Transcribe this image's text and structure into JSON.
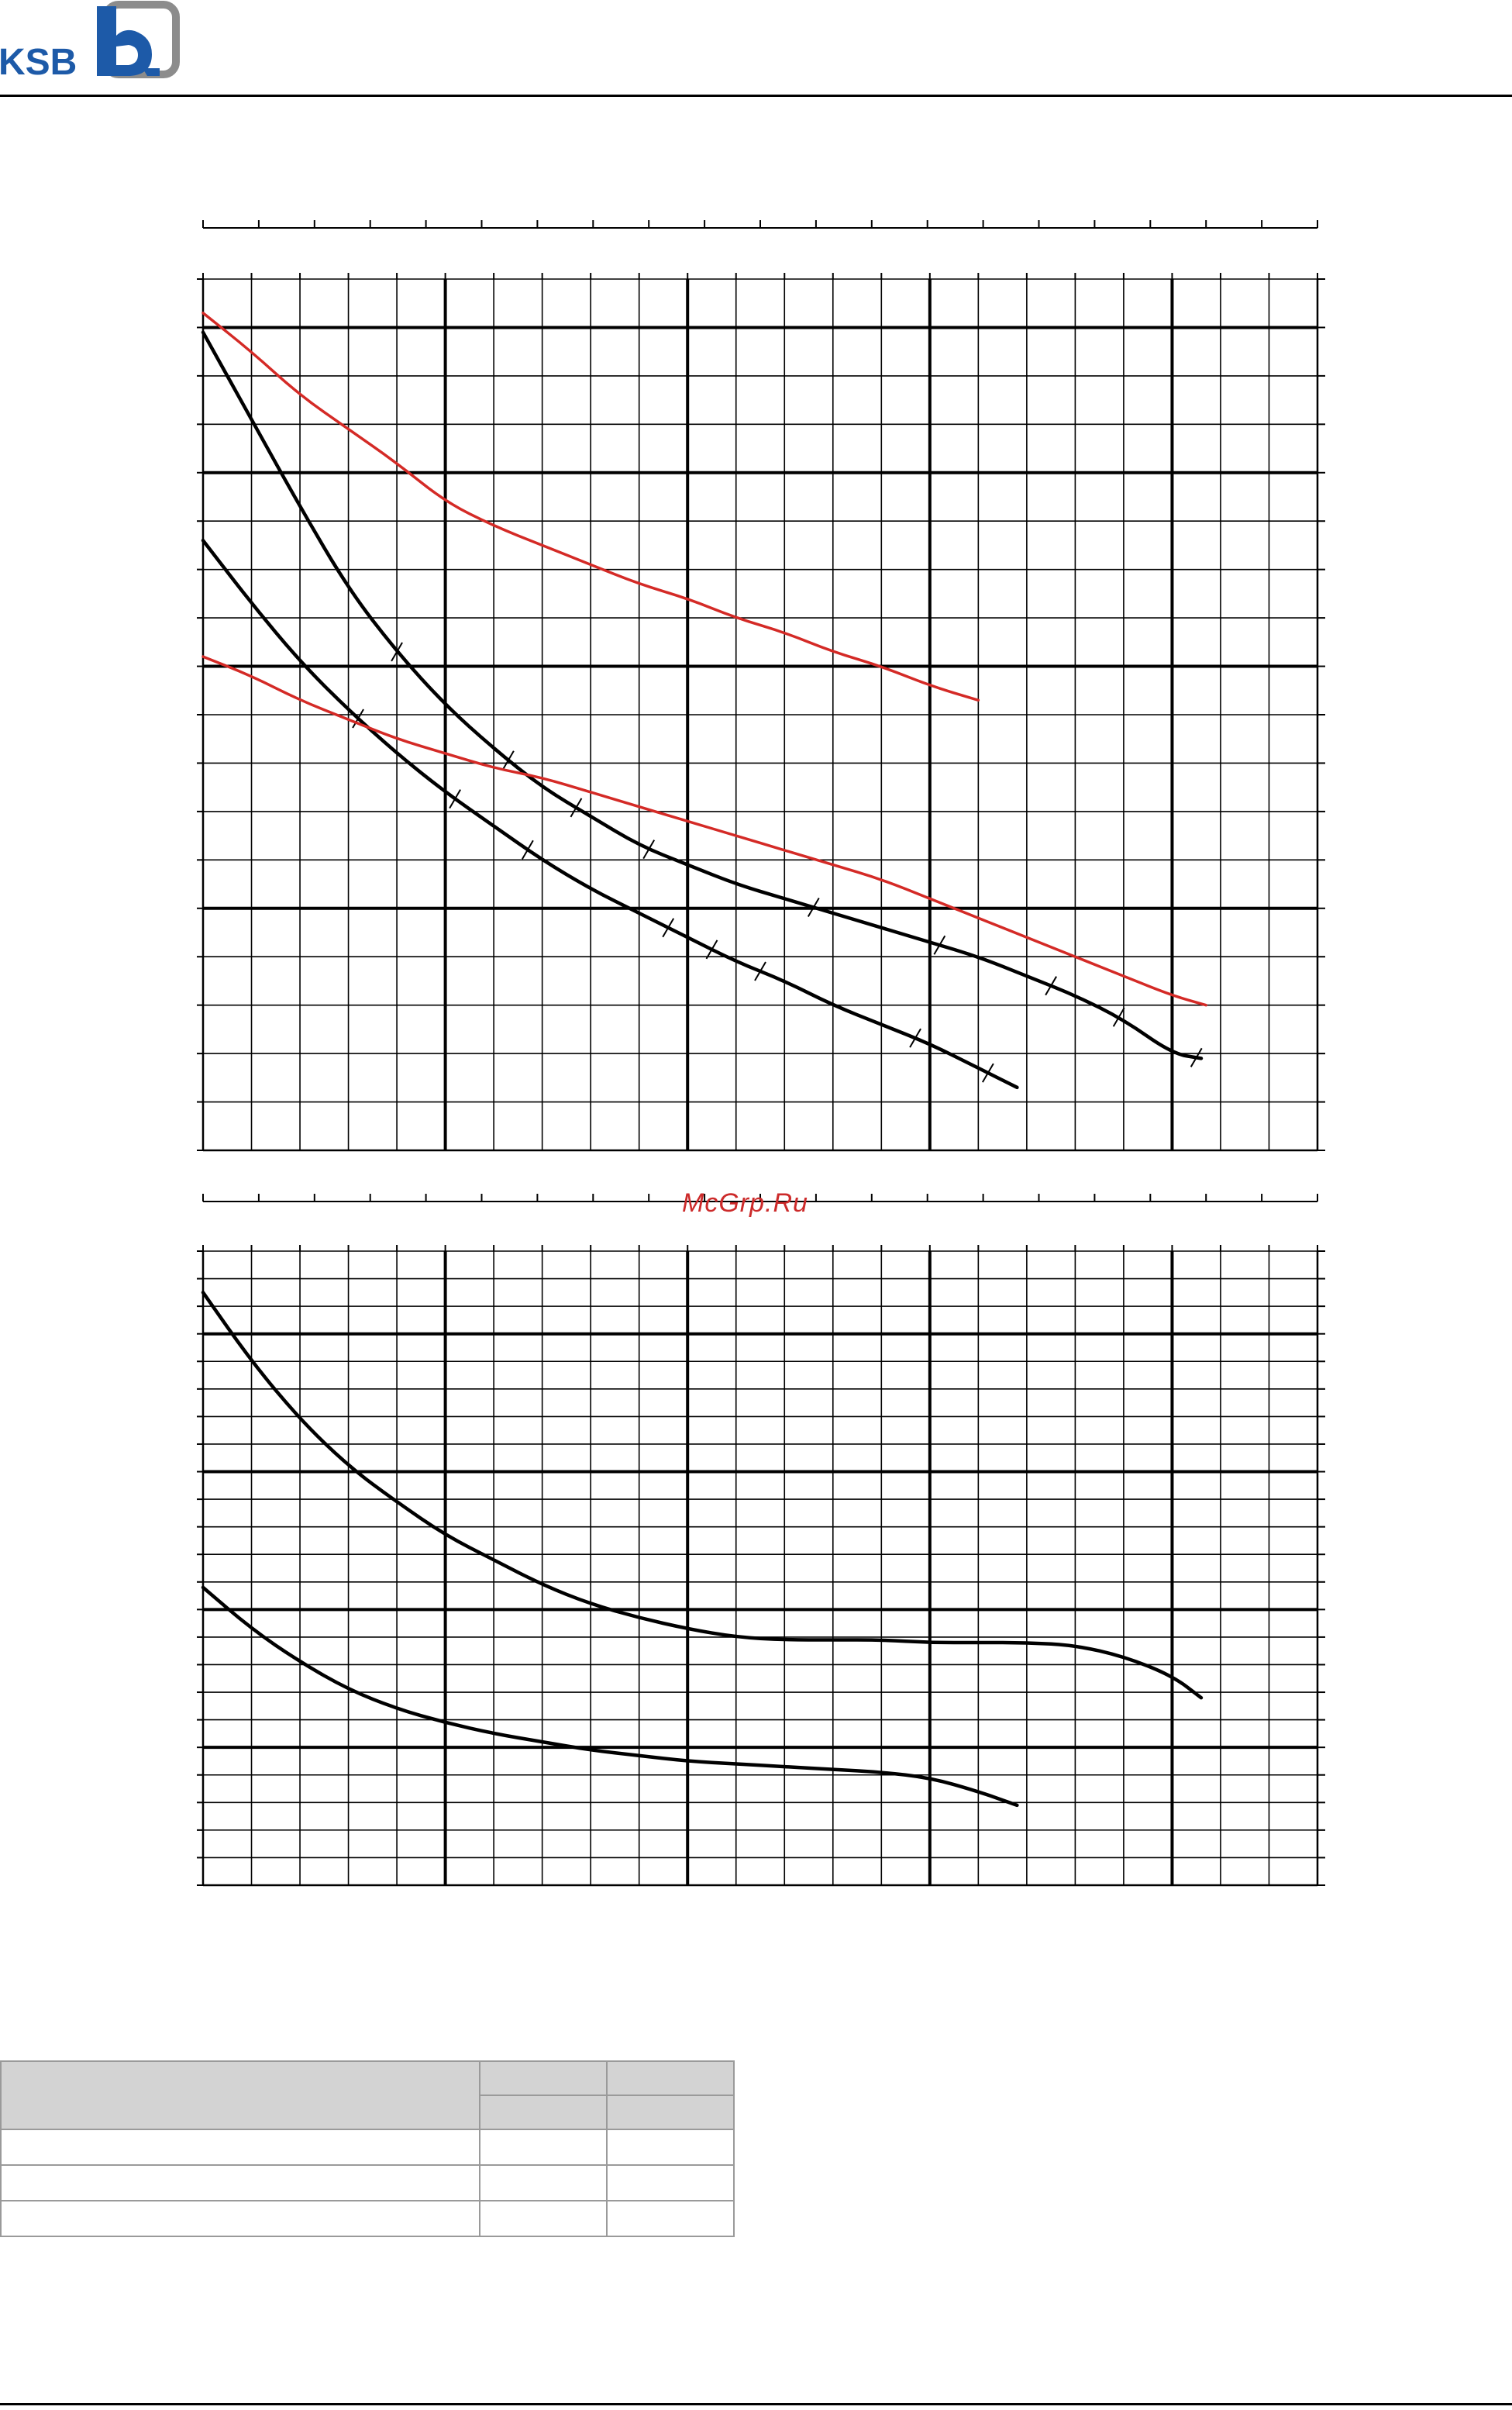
{
  "header": {
    "logo_text": "KSB",
    "brand_color": "#1d5aa8",
    "logo_grey": "#8c8c8c"
  },
  "watermark": {
    "text": "McGrp.Ru",
    "color": "#cc2a2a"
  },
  "chart_data": [
    {
      "type": "line",
      "title": "",
      "xlabel": "",
      "ylabel": "",
      "xlim": [
        0,
        23
      ],
      "ylim": [
        0,
        18
      ],
      "grid": true,
      "major_x": [
        5,
        10,
        15,
        20
      ],
      "major_y": [
        5,
        10,
        14,
        17
      ],
      "series": [
        {
          "color": "#000000",
          "style": "solid",
          "markers": "tick",
          "points": [
            [
              0,
              16.9
            ],
            [
              1,
              15.1
            ],
            [
              2,
              13.3
            ],
            [
              3,
              11.6
            ],
            [
              4,
              10.3
            ],
            [
              5,
              9.2
            ],
            [
              6,
              8.3
            ],
            [
              7,
              7.5
            ],
            [
              8,
              6.9
            ],
            [
              9,
              6.3
            ],
            [
              10,
              5.9
            ],
            [
              11,
              5.5
            ],
            [
              12,
              5.2
            ],
            [
              13,
              4.9
            ],
            [
              14,
              4.6
            ],
            [
              15,
              4.3
            ],
            [
              16,
              4.0
            ],
            [
              17,
              3.6
            ],
            [
              18,
              3.2
            ],
            [
              19,
              2.7
            ],
            [
              20,
              2.0
            ],
            [
              20.6,
              1.9
            ]
          ],
          "tick_x": [
            4,
            6.3,
            7.7,
            9.2,
            12.6,
            15.2,
            17.5,
            18.9,
            20.5
          ]
        },
        {
          "color": "#000000",
          "style": "solid",
          "markers": "tick",
          "points": [
            [
              0,
              12.6
            ],
            [
              1,
              11.3
            ],
            [
              2,
              10.1
            ],
            [
              3,
              9.1
            ],
            [
              4,
              8.2
            ],
            [
              5,
              7.4
            ],
            [
              6,
              6.7
            ],
            [
              7,
              6.0
            ],
            [
              8,
              5.4
            ],
            [
              9,
              4.9
            ],
            [
              10,
              4.4
            ],
            [
              11,
              3.9
            ],
            [
              12,
              3.5
            ],
            [
              13,
              3.0
            ],
            [
              14,
              2.6
            ],
            [
              15,
              2.2
            ],
            [
              16,
              1.7
            ],
            [
              16.8,
              1.3
            ]
          ],
          "tick_x": [
            3.2,
            5.2,
            6.7,
            9.6,
            10.5,
            11.5,
            14.7,
            16.2
          ]
        },
        {
          "color": "#d42a26",
          "style": "solid",
          "markers": "none",
          "points": [
            [
              0,
              17.3
            ],
            [
              1,
              16.5
            ],
            [
              2,
              15.6
            ],
            [
              3,
              14.9
            ],
            [
              4,
              14.2
            ],
            [
              5,
              13.4
            ],
            [
              6,
              12.9
            ],
            [
              7,
              12.5
            ],
            [
              8,
              12.1
            ],
            [
              9,
              11.7
            ],
            [
              10,
              11.4
            ],
            [
              11,
              11.0
            ],
            [
              12,
              10.7
            ],
            [
              13,
              10.3
            ],
            [
              14,
              10.0
            ],
            [
              15,
              9.6
            ],
            [
              16,
              9.3
            ]
          ]
        },
        {
          "color": "#d42a26",
          "style": "solid",
          "markers": "none",
          "points": [
            [
              0,
              10.2
            ],
            [
              1,
              9.8
            ],
            [
              2,
              9.3
            ],
            [
              3,
              8.9
            ],
            [
              4,
              8.5
            ],
            [
              5,
              8.2
            ],
            [
              6,
              7.9
            ],
            [
              7,
              7.7
            ],
            [
              8,
              7.4
            ],
            [
              9,
              7.1
            ],
            [
              10,
              6.8
            ],
            [
              11,
              6.5
            ],
            [
              12,
              6.2
            ],
            [
              13,
              5.9
            ],
            [
              14,
              5.6
            ],
            [
              15,
              5.2
            ],
            [
              16,
              4.8
            ],
            [
              17,
              4.4
            ],
            [
              18,
              4.0
            ],
            [
              19,
              3.6
            ],
            [
              20,
              3.2
            ],
            [
              20.7,
              3.0
            ]
          ]
        }
      ]
    },
    {
      "type": "line",
      "title": "",
      "xlabel": "",
      "ylabel": "",
      "xlim": [
        0,
        23
      ],
      "ylim": [
        0,
        23
      ],
      "grid": true,
      "major_x": [
        5,
        10,
        15,
        20
      ],
      "major_y": [
        5,
        10,
        15,
        20
      ],
      "series": [
        {
          "color": "#000000",
          "style": "solid",
          "markers": "none",
          "points": [
            [
              0,
              21.5
            ],
            [
              1,
              19.0
            ],
            [
              2,
              16.9
            ],
            [
              3,
              15.2
            ],
            [
              4,
              13.9
            ],
            [
              5,
              12.7
            ],
            [
              6,
              11.8
            ],
            [
              7,
              10.9
            ],
            [
              8,
              10.2
            ],
            [
              9,
              9.7
            ],
            [
              10,
              9.3
            ],
            [
              11,
              9.0
            ],
            [
              12,
              8.9
            ],
            [
              13,
              8.9
            ],
            [
              14,
              8.9
            ],
            [
              15,
              8.8
            ],
            [
              16,
              8.8
            ],
            [
              17,
              8.8
            ],
            [
              18,
              8.7
            ],
            [
              19,
              8.3
            ],
            [
              20,
              7.6
            ],
            [
              20.6,
              6.8
            ]
          ]
        },
        {
          "color": "#000000",
          "style": "solid",
          "markers": "none",
          "points": [
            [
              0,
              10.8
            ],
            [
              1,
              9.3
            ],
            [
              2,
              8.1
            ],
            [
              3,
              7.1
            ],
            [
              4,
              6.4
            ],
            [
              5,
              5.9
            ],
            [
              6,
              5.5
            ],
            [
              7,
              5.2
            ],
            [
              8,
              4.9
            ],
            [
              9,
              4.7
            ],
            [
              10,
              4.5
            ],
            [
              11,
              4.4
            ],
            [
              12,
              4.3
            ],
            [
              13,
              4.2
            ],
            [
              14,
              4.1
            ],
            [
              15,
              3.9
            ],
            [
              16,
              3.4
            ],
            [
              16.8,
              2.9
            ]
          ]
        }
      ]
    }
  ],
  "table": {
    "header_bg": "#d3d3d3",
    "rows": [
      [
        "",
        "",
        ""
      ],
      [
        "",
        "",
        ""
      ],
      [
        "",
        "",
        ""
      ],
      [
        "",
        "",
        ""
      ]
    ]
  }
}
